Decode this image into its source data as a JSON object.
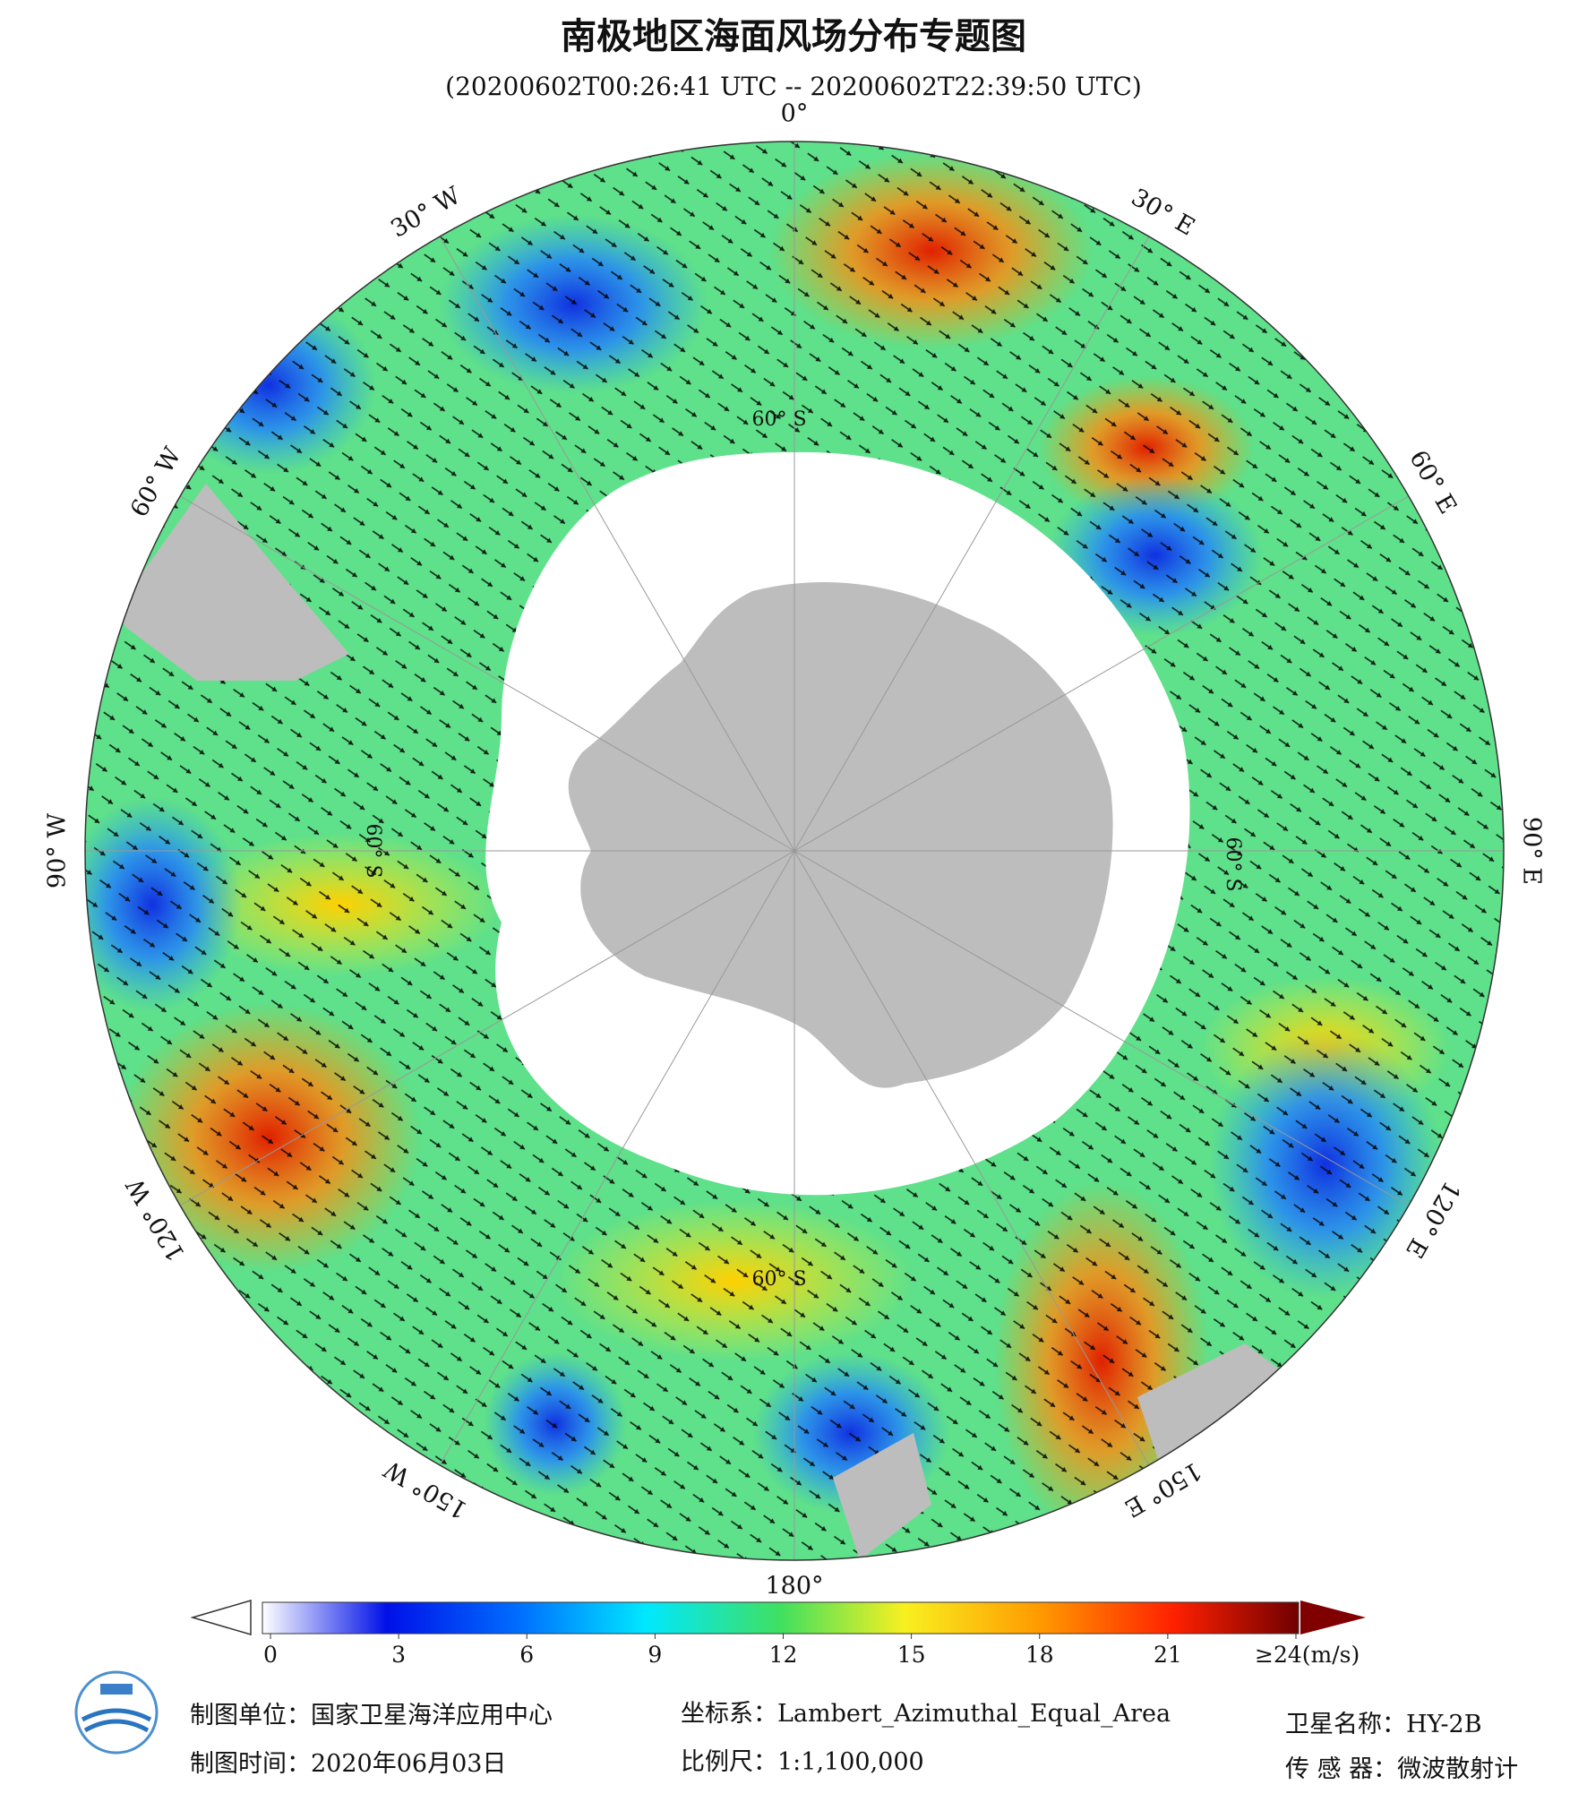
{
  "header": {
    "title": "南极地区海面风场分布专题图",
    "subtitle": "(20200602T00:26:41 UTC -- 20200602T22:39:50 UTC)"
  },
  "map": {
    "longitude_labels": [
      "0°",
      "30° E",
      "60° E",
      "90° E",
      "120° E",
      "150° E",
      "180°",
      "150° W",
      "120° W",
      "90° W",
      "60° W",
      "30° W"
    ],
    "latitude_labels": [
      "60° S",
      "60° S",
      "60° S",
      "60° S"
    ]
  },
  "colorbar": {
    "ticks": [
      0,
      3,
      6,
      9,
      12,
      15,
      18,
      21,
      {
        "value": 24,
        "label": "≥24(m/s)"
      }
    ]
  },
  "footer": {
    "organization": "制图单位：国家卫星海洋应用中心",
    "date": "制图时间：2020年06月03日",
    "projection": "坐标系：Lambert_Azimuthal_Equal_Area",
    "scale": "比例尺：1:1,100,000",
    "satellite": "卫星名称：HY-2B",
    "sensor": "传 感 器：微波散射计"
  }
}
